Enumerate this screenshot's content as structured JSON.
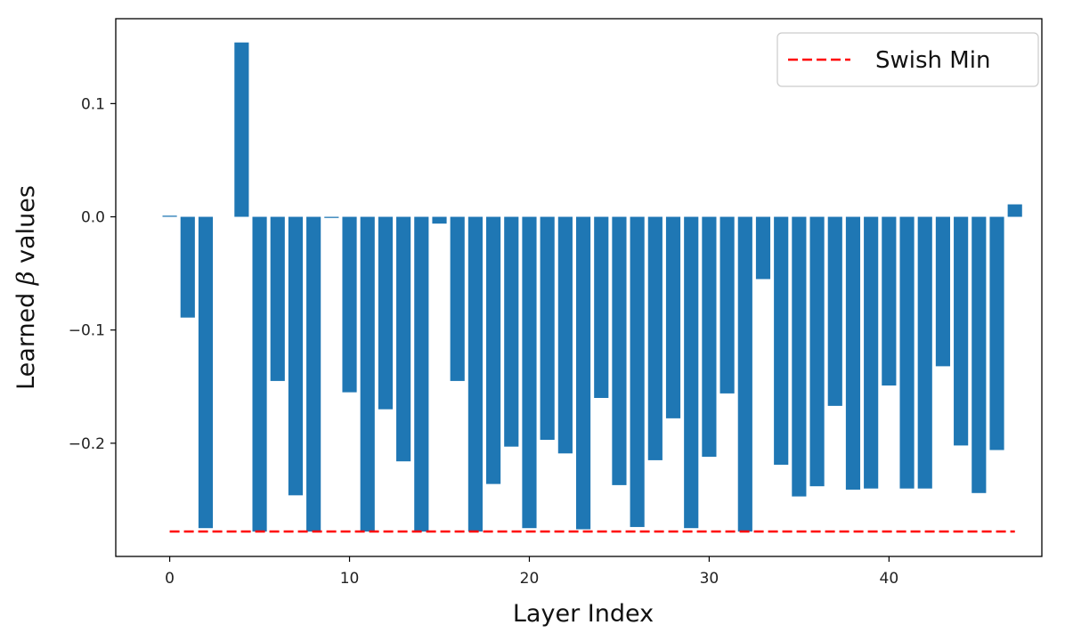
{
  "chart_data": {
    "type": "bar",
    "title": "",
    "xlabel": "Layer Index",
    "ylabel_prefix": "Learned ",
    "ylabel_symbol": "β",
    "ylabel_suffix": " values",
    "xlim": [
      -3,
      48.5
    ],
    "ylim": [
      -0.3,
      0.175
    ],
    "xticks": [
      0,
      10,
      20,
      30,
      40
    ],
    "yticks": [
      0.1,
      0.0,
      -0.1,
      -0.2
    ],
    "ytick_labels": [
      "0.1",
      "0.0",
      "−0.1",
      "−0.2"
    ],
    "bar_color": "#1f77b4",
    "x": [
      0,
      1,
      2,
      3,
      4,
      5,
      6,
      7,
      8,
      9,
      10,
      11,
      12,
      13,
      14,
      15,
      16,
      17,
      18,
      19,
      20,
      21,
      22,
      23,
      24,
      25,
      26,
      27,
      28,
      29,
      30,
      31,
      32,
      33,
      34,
      35,
      36,
      37,
      38,
      39,
      40,
      41,
      42,
      43,
      44,
      45,
      46,
      47
    ],
    "values": [
      0.001,
      -0.089,
      -0.275,
      0,
      0.154,
      -0.278,
      -0.145,
      -0.246,
      -0.278,
      -0.001,
      -0.155,
      -0.278,
      -0.17,
      -0.216,
      -0.278,
      -0.006,
      -0.145,
      -0.278,
      -0.236,
      -0.203,
      -0.275,
      -0.197,
      -0.209,
      -0.276,
      -0.16,
      -0.237,
      -0.274,
      -0.215,
      -0.178,
      -0.275,
      -0.212,
      -0.156,
      -0.278,
      -0.055,
      -0.219,
      -0.247,
      -0.238,
      -0.167,
      -0.241,
      -0.24,
      -0.149,
      -0.24,
      -0.24,
      -0.132,
      -0.202,
      -0.244,
      -0.206,
      0.011
    ],
    "reference_line": {
      "name": "Swish Min",
      "y": -0.278,
      "x_range": [
        0,
        47
      ],
      "color": "#ff0000",
      "style": "dashed"
    },
    "legend_position": "top-right",
    "grid": false
  }
}
